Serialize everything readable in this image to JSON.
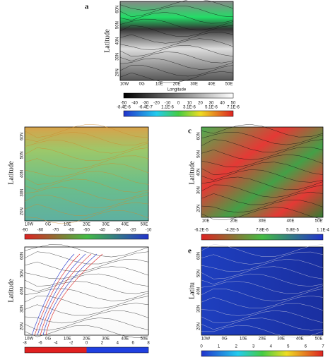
{
  "panels": [
    {
      "label": "a",
      "y_label": "Latitude",
      "x_label": "Longitude",
      "x_ticks": [
        "10W",
        "0G",
        "10E",
        "20E",
        "30E",
        "40E",
        "50E"
      ],
      "y_ticks": [
        "60N",
        "50N",
        "40N",
        "30N",
        "20N"
      ],
      "colorbars": [
        {
          "ticks": [
            "-50",
            "-40",
            "-30",
            "-20",
            "-10",
            "0",
            "10",
            "20",
            "30",
            "40",
            "50"
          ]
        },
        {
          "ticks": [
            "-8.4E-6",
            "-6.4E-7",
            "1.1E-6",
            "3.1E-6",
            "5.1E-6",
            "7.1E-6"
          ]
        }
      ]
    },
    {
      "y_label": "Latitude",
      "x_ticks": [
        "10W",
        "0G",
        "10E",
        "20E",
        "30E",
        "40E",
        "50E"
      ],
      "y_ticks": [
        "60N",
        "50N",
        "40N",
        "30N",
        "20N"
      ],
      "colorbars": [
        {
          "ticks": [
            "-90",
            "-80",
            "-70",
            "-60",
            "-50",
            "-40",
            "-30",
            "-20",
            "-10"
          ]
        }
      ]
    },
    {
      "label": "c",
      "y_label": "Latitude",
      "x_ticks": [
        "10E",
        "20E",
        "30E",
        "40E",
        "50E"
      ],
      "y_ticks": [
        "60N",
        "50N",
        "40N",
        "30N",
        "20N"
      ],
      "colorbars": [
        {
          "ticks": [
            "-6.2E-5",
            "-4.2E-5",
            "7.8E-6",
            "5.8E-5",
            "1.1E-4"
          ]
        }
      ]
    },
    {
      "y_label": "Latitude",
      "x_ticks": [
        "10W",
        "0G",
        "10E",
        "20E",
        "30E",
        "40E",
        "50E"
      ],
      "y_ticks": [
        "60N",
        "50N",
        "40N",
        "30N",
        "20N"
      ],
      "colorbars": [
        {
          "ticks": [
            "-8",
            "-6",
            "-4",
            "-2",
            "0",
            "2",
            "4",
            "6",
            "8"
          ]
        }
      ]
    },
    {
      "label": "e",
      "y_label": "Latitu",
      "x_ticks": [
        "10W",
        "0G",
        "10E",
        "20E",
        "30E",
        "40E",
        "50E"
      ],
      "y_ticks": [
        "60N",
        "50N",
        "40N",
        "30N",
        "20N"
      ],
      "colorbars": [
        {
          "ticks": [
            "0",
            "1",
            "2",
            "3",
            "4",
            "5",
            "6",
            "7"
          ]
        }
      ]
    }
  ]
}
